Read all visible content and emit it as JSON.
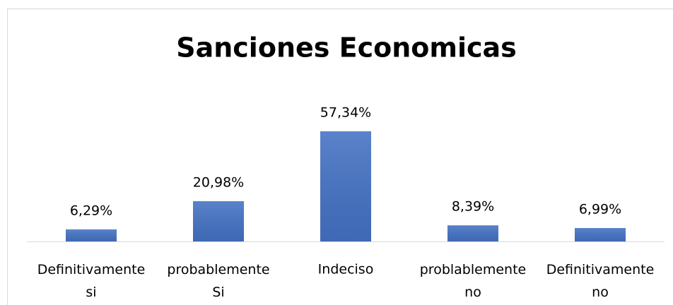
{
  "chart_data": {
    "type": "bar",
    "title": "Sanciones Economicas",
    "categories": [
      "Definitivamente si",
      "probablemente Si",
      "Indeciso",
      "problablemente no",
      "Definitivamente no"
    ],
    "values": [
      6.29,
      20.98,
      57.34,
      8.39,
      6.99
    ],
    "value_labels": [
      "6,29%",
      "20,98%",
      "57,34%",
      "8,39%",
      "6,99%"
    ],
    "color": "#4472c4"
  }
}
